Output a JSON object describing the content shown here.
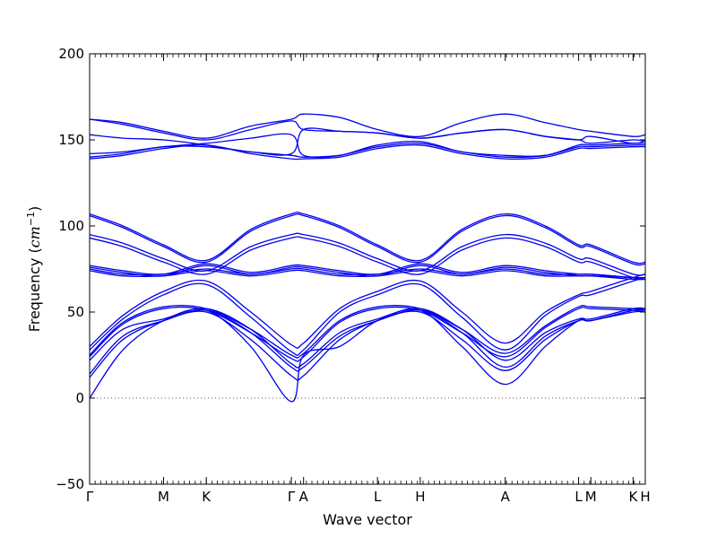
{
  "chart_data": {
    "type": "line",
    "title": "",
    "xlabel": "Wave vector",
    "ylabel_prefix": "Frequency (",
    "ylabel_unit": "cm",
    "ylabel_exp": "−1",
    "ylabel_suffix": ")",
    "ylim": [
      -50,
      200
    ],
    "yticks": [
      {
        "value": -50,
        "label": "−50"
      },
      {
        "value": 0,
        "label": "0"
      },
      {
        "value": 50,
        "label": "50"
      },
      {
        "value": 100,
        "label": "100"
      },
      {
        "value": 150,
        "label": "150"
      },
      {
        "value": 200,
        "label": "200"
      }
    ],
    "xlim": [
      0,
      1
    ],
    "xticks": [
      {
        "pos": 0.0,
        "label": "Γ"
      },
      {
        "pos": 0.133,
        "label": "M"
      },
      {
        "pos": 0.21,
        "label": "K"
      },
      {
        "pos": 0.363,
        "label": "Γ"
      },
      {
        "pos": 0.385,
        "label": "A"
      },
      {
        "pos": 0.518,
        "label": "L"
      },
      {
        "pos": 0.595,
        "label": "H"
      },
      {
        "pos": 0.748,
        "label": "A"
      },
      {
        "pos": 0.88,
        "label": "L"
      },
      {
        "pos": 0.902,
        "label": "M"
      },
      {
        "pos": 0.978,
        "label": "K"
      },
      {
        "pos": 1.0,
        "label": "H"
      }
    ],
    "grid": false,
    "zero_line": true,
    "line_color": "#0000ee",
    "series": [
      {
        "x": [
          0,
          0.06,
          0.133,
          0.21,
          0.29,
          0.363,
          0.385,
          0.45,
          0.518,
          0.595,
          0.67,
          0.748,
          0.82,
          0.88,
          0.902,
          0.978,
          1
        ],
        "y": [
          162,
          160,
          155,
          151,
          158,
          162,
          165,
          163,
          156,
          152,
          160,
          165,
          160,
          156,
          155,
          152,
          153
        ]
      },
      {
        "x": [
          0,
          0.06,
          0.133,
          0.21,
          0.29,
          0.363,
          0.385,
          0.45,
          0.518,
          0.595,
          0.67,
          0.748,
          0.82,
          0.88,
          0.902,
          0.978,
          1
        ],
        "y": [
          162,
          159,
          154,
          150,
          156,
          161,
          156,
          155,
          154,
          151,
          154,
          156,
          152,
          150,
          152,
          148,
          150
        ]
      },
      {
        "x": [
          0,
          0.06,
          0.133,
          0.21,
          0.29,
          0.363,
          0.385,
          0.45,
          0.518,
          0.595,
          0.67,
          0.748,
          0.82,
          0.88,
          0.902,
          0.978,
          1
        ],
        "y": [
          153,
          151,
          150,
          147,
          143,
          142,
          156,
          155,
          154,
          151,
          154,
          156,
          152,
          150,
          148,
          150,
          149
        ]
      },
      {
        "x": [
          0,
          0.06,
          0.133,
          0.21,
          0.29,
          0.363,
          0.385,
          0.45,
          0.518,
          0.595,
          0.67,
          0.748,
          0.82,
          0.88,
          0.902,
          0.978,
          1
        ],
        "y": [
          142,
          143,
          146,
          148,
          151,
          153,
          141,
          141,
          147,
          149,
          143,
          141,
          141,
          147,
          147,
          148,
          148
        ]
      },
      {
        "x": [
          0,
          0.06,
          0.133,
          0.21,
          0.29,
          0.363,
          0.385,
          0.45,
          0.518,
          0.595,
          0.67,
          0.748,
          0.82,
          0.88,
          0.902,
          0.978,
          1
        ],
        "y": [
          140,
          142,
          146,
          146,
          143,
          141,
          140,
          141,
          146,
          148,
          143,
          140,
          141,
          146,
          146,
          147,
          147
        ]
      },
      {
        "x": [
          0,
          0.06,
          0.133,
          0.21,
          0.29,
          0.363,
          0.385,
          0.45,
          0.518,
          0.595,
          0.67,
          0.748,
          0.82,
          0.88,
          0.902,
          0.978,
          1
        ],
        "y": [
          139,
          141,
          145,
          147,
          142,
          139,
          139,
          140,
          145,
          147,
          142,
          139,
          140,
          145,
          145,
          146,
          146
        ]
      },
      {
        "x": [
          0,
          0.06,
          0.133,
          0.21,
          0.29,
          0.363,
          0.385,
          0.45,
          0.518,
          0.595,
          0.67,
          0.748,
          0.82,
          0.88,
          0.902,
          0.978,
          1
        ],
        "y": [
          107,
          100,
          89,
          80,
          98,
          107,
          107,
          100,
          89,
          80,
          98,
          107,
          100,
          89,
          89,
          79,
          79
        ]
      },
      {
        "x": [
          0,
          0.06,
          0.133,
          0.21,
          0.29,
          0.363,
          0.385,
          0.45,
          0.518,
          0.595,
          0.67,
          0.748,
          0.82,
          0.88,
          0.902,
          0.978,
          1
        ],
        "y": [
          106,
          99,
          88,
          79,
          97,
          106,
          106,
          99,
          88,
          79,
          97,
          106,
          99,
          88,
          88,
          78,
          78
        ]
      },
      {
        "x": [
          0,
          0.06,
          0.133,
          0.21,
          0.29,
          0.363,
          0.385,
          0.45,
          0.518,
          0.595,
          0.67,
          0.748,
          0.82,
          0.88,
          0.902,
          0.978,
          1
        ],
        "y": [
          95,
          90,
          81,
          74,
          88,
          95,
          95,
          90,
          81,
          74,
          88,
          95,
          90,
          81,
          81,
          72,
          72
        ]
      },
      {
        "x": [
          0,
          0.06,
          0.133,
          0.21,
          0.29,
          0.363,
          0.385,
          0.45,
          0.518,
          0.595,
          0.67,
          0.748,
          0.82,
          0.88,
          0.902,
          0.978,
          1
        ],
        "y": [
          93,
          88,
          79,
          72,
          86,
          93,
          93,
          88,
          79,
          72,
          86,
          93,
          88,
          79,
          79,
          70,
          70
        ]
      },
      {
        "x": [
          0,
          0.06,
          0.133,
          0.21,
          0.29,
          0.363,
          0.385,
          0.45,
          0.518,
          0.595,
          0.67,
          0.748,
          0.82,
          0.88,
          0.902,
          0.978,
          1
        ],
        "y": [
          77,
          74,
          72,
          78,
          73,
          77,
          77,
          74,
          72,
          78,
          73,
          77,
          74,
          72,
          72,
          70,
          70
        ]
      },
      {
        "x": [
          0,
          0.06,
          0.133,
          0.21,
          0.29,
          0.363,
          0.385,
          0.45,
          0.518,
          0.595,
          0.67,
          0.748,
          0.82,
          0.88,
          0.902,
          0.978,
          1
        ],
        "y": [
          76,
          73,
          71,
          77,
          72,
          76,
          76,
          73,
          71,
          77,
          72,
          76,
          73,
          71,
          71,
          69,
          69
        ]
      },
      {
        "x": [
          0,
          0.06,
          0.133,
          0.21,
          0.29,
          0.363,
          0.385,
          0.45,
          0.518,
          0.595,
          0.67,
          0.748,
          0.82,
          0.88,
          0.902,
          0.978,
          1
        ],
        "y": [
          75,
          72,
          72,
          75,
          72,
          75,
          75,
          72,
          72,
          75,
          72,
          75,
          72,
          72,
          72,
          70,
          70
        ]
      },
      {
        "x": [
          0,
          0.06,
          0.133,
          0.21,
          0.29,
          0.363,
          0.385,
          0.45,
          0.518,
          0.595,
          0.67,
          0.748,
          0.82,
          0.88,
          0.902,
          0.978,
          1
        ],
        "y": [
          74,
          71,
          71,
          74,
          71,
          74,
          74,
          71,
          71,
          74,
          71,
          74,
          71,
          71,
          71,
          70,
          70
        ]
      },
      {
        "x": [
          0,
          0.06,
          0.133,
          0.21,
          0.29,
          0.363,
          0.385,
          0.45,
          0.518,
          0.595,
          0.67,
          0.748,
          0.82,
          0.88,
          0.902,
          0.978,
          1
        ],
        "y": [
          30,
          48,
          62,
          68,
          50,
          31,
          32,
          52,
          62,
          68,
          50,
          32,
          50,
          60,
          62,
          70,
          72
        ]
      },
      {
        "x": [
          0,
          0.06,
          0.133,
          0.21,
          0.29,
          0.363,
          0.385,
          0.45,
          0.518,
          0.595,
          0.67,
          0.748,
          0.82,
          0.88,
          0.902,
          0.978,
          1
        ],
        "y": [
          28,
          46,
          60,
          66,
          47,
          27,
          28,
          50,
          60,
          66,
          47,
          28,
          48,
          59,
          60,
          68,
          70
        ]
      },
      {
        "x": [
          0,
          0.06,
          0.133,
          0.21,
          0.29,
          0.363,
          0.385,
          0.45,
          0.518,
          0.595,
          0.67,
          0.748,
          0.82,
          0.88,
          0.902,
          0.978,
          1
        ],
        "y": [
          25,
          44,
          53,
          52,
          40,
          25,
          26,
          45,
          53,
          52,
          40,
          26,
          42,
          53,
          53,
          52,
          52
        ]
      },
      {
        "x": [
          0,
          0.06,
          0.133,
          0.21,
          0.29,
          0.363,
          0.385,
          0.45,
          0.518,
          0.595,
          0.67,
          0.748,
          0.82,
          0.88,
          0.902,
          0.978,
          1
        ],
        "y": [
          24,
          43,
          52,
          51,
          38,
          23,
          24,
          44,
          52,
          51,
          38,
          24,
          41,
          52,
          52,
          51,
          51
        ]
      },
      {
        "x": [
          0,
          0.06,
          0.133,
          0.21,
          0.29,
          0.363,
          0.385,
          0.45,
          0.518,
          0.595,
          0.67,
          0.748,
          0.82,
          0.88,
          0.902,
          0.978,
          1
        ],
        "y": [
          22,
          40,
          46,
          52,
          40,
          20,
          20,
          38,
          46,
          52,
          40,
          22,
          38,
          46,
          46,
          52,
          52
        ]
      },
      {
        "x": [
          0,
          0.06,
          0.133,
          0.21,
          0.29,
          0.363,
          0.385,
          0.45,
          0.518,
          0.595,
          0.67,
          0.748,
          0.82,
          0.88,
          0.902,
          0.978,
          1
        ],
        "y": [
          14,
          36,
          45,
          51,
          38,
          18,
          18,
          36,
          45,
          51,
          38,
          18,
          36,
          45,
          45,
          51,
          51
        ]
      },
      {
        "x": [
          0,
          0.06,
          0.133,
          0.21,
          0.29,
          0.363,
          0.385,
          0.45,
          0.518,
          0.595,
          0.67,
          0.748,
          0.82,
          0.88,
          0.902,
          0.978,
          1
        ],
        "y": [
          12,
          34,
          45,
          50,
          34,
          13,
          13,
          34,
          45,
          50,
          34,
          16,
          34,
          45,
          45,
          50,
          50
        ]
      },
      {
        "x": [
          0,
          0.06,
          0.133,
          0.21,
          0.29,
          0.363,
          0.385,
          0.45,
          0.518,
          0.595,
          0.67,
          0.748,
          0.82,
          0.88,
          0.902,
          0.978,
          1
        ],
        "y": [
          0,
          28,
          45,
          51,
          30,
          -2,
          25,
          30,
          45,
          51,
          30,
          8,
          30,
          45,
          45,
          51,
          51
        ]
      }
    ]
  }
}
